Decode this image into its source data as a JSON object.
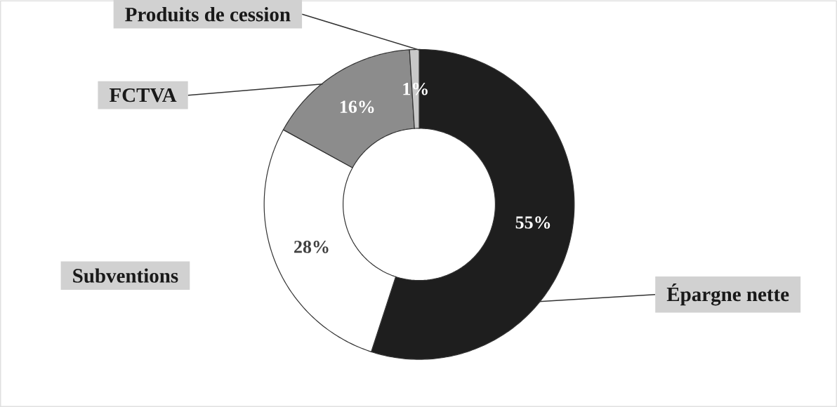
{
  "chart_data": {
    "type": "donut",
    "categories": [
      "Épargne nette",
      "Subventions",
      "FCTVA",
      "Produits de cession"
    ],
    "values": [
      55,
      28,
      16,
      1
    ],
    "colors": [
      "#1e1e1e",
      "#ffffff",
      "#8c8c8c",
      "#c8c8c8"
    ],
    "value_labels": [
      "55%",
      "28%",
      "16%",
      "1%"
    ]
  }
}
